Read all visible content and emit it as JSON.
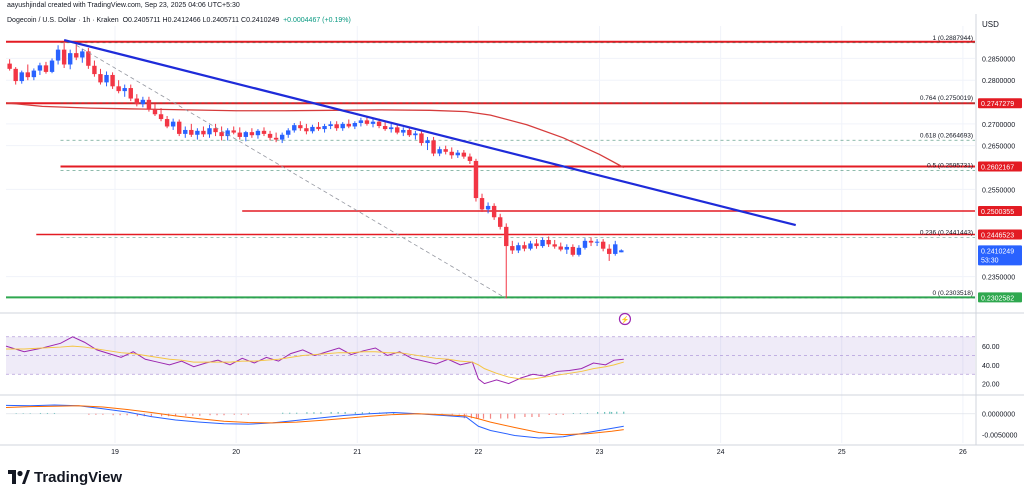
{
  "header": {
    "author_line": "aayushjindal created with TradingView.com, Sep 23, 2025 04:06 UTC+5:30",
    "symbol_line": "Dogecoin / U.S. Dollar · 1h · Kraken",
    "ohlc": "O0.2405711  H0.2412466  L0.2405711  C0.2410249",
    "change": "+0.0004467 (+0.19%)"
  },
  "brand": {
    "name": "TradingView"
  },
  "colors": {
    "up": "#2962ff",
    "down": "#f23645",
    "trend": "#1e2bd9",
    "level": "#e31b23",
    "support": "#2fa84f",
    "rsi": "#9c27b0",
    "rsi_ma": "#f5c542",
    "macd": "#2962ff",
    "signal": "#ff6d00",
    "fib": "#2a7f62",
    "price_badge": "#2962ff"
  },
  "chart_data": {
    "type": "candlestick",
    "title": "Dogecoin / U.S. Dollar · 1h · Kraken",
    "currency": "USD",
    "y_axis_ticks": [
      "0.2850000",
      "0.2800000",
      "0.2700000",
      "0.2650000",
      "0.2550000",
      "0.2350000"
    ],
    "x_axis_ticks": [
      "19",
      "20",
      "21",
      "22",
      "23",
      "24",
      "25",
      "26"
    ],
    "ylim": [
      0.2285,
      0.2915
    ],
    "x_range": [
      18.1,
      26.1
    ],
    "candles": [
      [
        18.13,
        0.2838,
        0.2848,
        0.2822,
        0.2826
      ],
      [
        18.18,
        0.2826,
        0.283,
        0.279,
        0.2798
      ],
      [
        18.23,
        0.2798,
        0.2822,
        0.2792,
        0.2818
      ],
      [
        18.28,
        0.2818,
        0.2836,
        0.28,
        0.2807
      ],
      [
        18.33,
        0.2807,
        0.2827,
        0.28,
        0.2822
      ],
      [
        18.38,
        0.2822,
        0.284,
        0.2812,
        0.2834
      ],
      [
        18.43,
        0.2834,
        0.2842,
        0.2815,
        0.2819
      ],
      [
        18.48,
        0.2819,
        0.285,
        0.2816,
        0.2845
      ],
      [
        18.53,
        0.2845,
        0.288,
        0.2836,
        0.287
      ],
      [
        18.58,
        0.287,
        0.2885,
        0.2828,
        0.2836
      ],
      [
        18.63,
        0.2836,
        0.287,
        0.2825,
        0.2862
      ],
      [
        18.68,
        0.2862,
        0.2888,
        0.2846,
        0.2852
      ],
      [
        18.73,
        0.2852,
        0.2872,
        0.284,
        0.2866
      ],
      [
        18.78,
        0.2866,
        0.2874,
        0.2826,
        0.2833
      ],
      [
        18.83,
        0.2833,
        0.2845,
        0.2808,
        0.2814
      ],
      [
        18.88,
        0.2814,
        0.2826,
        0.279,
        0.2795
      ],
      [
        18.93,
        0.2795,
        0.282,
        0.2786,
        0.2812
      ],
      [
        18.98,
        0.2812,
        0.2818,
        0.278,
        0.2786
      ],
      [
        19.03,
        0.2786,
        0.28,
        0.277,
        0.2775
      ],
      [
        19.08,
        0.2775,
        0.279,
        0.2762,
        0.2782
      ],
      [
        19.13,
        0.2782,
        0.279,
        0.2752,
        0.2758
      ],
      [
        19.18,
        0.2758,
        0.2768,
        0.274,
        0.2745
      ],
      [
        19.23,
        0.2745,
        0.2762,
        0.2738,
        0.2755
      ],
      [
        19.28,
        0.2755,
        0.2762,
        0.2728,
        0.2733
      ],
      [
        19.33,
        0.2733,
        0.2746,
        0.2718,
        0.2722
      ],
      [
        19.38,
        0.2722,
        0.2736,
        0.2706,
        0.2711
      ],
      [
        19.43,
        0.2711,
        0.2718,
        0.269,
        0.2694
      ],
      [
        19.48,
        0.2694,
        0.2712,
        0.2686,
        0.2705
      ],
      [
        19.53,
        0.2705,
        0.271,
        0.2672,
        0.2677
      ],
      [
        19.58,
        0.2677,
        0.2694,
        0.2668,
        0.2686
      ],
      [
        19.63,
        0.2686,
        0.27,
        0.267,
        0.2675
      ],
      [
        19.68,
        0.2675,
        0.269,
        0.2664,
        0.2684
      ],
      [
        19.73,
        0.2684,
        0.2694,
        0.267,
        0.2676
      ],
      [
        19.78,
        0.2676,
        0.2698,
        0.2668,
        0.269
      ],
      [
        19.83,
        0.269,
        0.27,
        0.2672,
        0.2681
      ],
      [
        19.88,
        0.2681,
        0.2694,
        0.2662,
        0.2672
      ],
      [
        19.93,
        0.2672,
        0.269,
        0.2662,
        0.2685
      ],
      [
        19.98,
        0.2685,
        0.2694,
        0.2676,
        0.268
      ],
      [
        20.03,
        0.268,
        0.2692,
        0.2664,
        0.267
      ],
      [
        20.08,
        0.267,
        0.2684,
        0.266,
        0.2681
      ],
      [
        20.13,
        0.2681,
        0.269,
        0.2668,
        0.2674
      ],
      [
        20.18,
        0.2674,
        0.2688,
        0.2666,
        0.2684
      ],
      [
        20.23,
        0.2684,
        0.2692,
        0.2672,
        0.2677
      ],
      [
        20.28,
        0.2677,
        0.2684,
        0.2662,
        0.2668
      ],
      [
        20.33,
        0.2668,
        0.268,
        0.2658,
        0.2664
      ],
      [
        20.38,
        0.2664,
        0.268,
        0.2656,
        0.2675
      ],
      [
        20.43,
        0.2675,
        0.269,
        0.2668,
        0.2685
      ],
      [
        20.48,
        0.2685,
        0.2702,
        0.268,
        0.2697
      ],
      [
        20.53,
        0.2697,
        0.2706,
        0.2684,
        0.269
      ],
      [
        20.58,
        0.269,
        0.27,
        0.2676,
        0.2683
      ],
      [
        20.63,
        0.2683,
        0.2698,
        0.2678,
        0.2693
      ],
      [
        20.68,
        0.2693,
        0.2704,
        0.2684,
        0.2688
      ],
      [
        20.73,
        0.2688,
        0.27,
        0.268,
        0.2695
      ],
      [
        20.78,
        0.2695,
        0.2706,
        0.2688,
        0.2699
      ],
      [
        20.83,
        0.2699,
        0.2706,
        0.2684,
        0.269
      ],
      [
        20.88,
        0.269,
        0.2704,
        0.2684,
        0.27
      ],
      [
        20.93,
        0.27,
        0.271,
        0.269,
        0.2694
      ],
      [
        20.98,
        0.2694,
        0.2706,
        0.2688,
        0.2702
      ],
      [
        21.03,
        0.2702,
        0.2714,
        0.2694,
        0.2708
      ],
      [
        21.08,
        0.2708,
        0.2716,
        0.2696,
        0.27
      ],
      [
        21.13,
        0.27,
        0.2712,
        0.2692,
        0.2705
      ],
      [
        21.18,
        0.2705,
        0.2712,
        0.269,
        0.2695
      ],
      [
        21.23,
        0.2695,
        0.2704,
        0.2684,
        0.2688
      ],
      [
        21.28,
        0.2688,
        0.27,
        0.268,
        0.2692
      ],
      [
        21.33,
        0.2692,
        0.27,
        0.2676,
        0.268
      ],
      [
        21.38,
        0.268,
        0.2692,
        0.2672,
        0.2686
      ],
      [
        21.43,
        0.2686,
        0.2694,
        0.267,
        0.2674
      ],
      [
        21.48,
        0.2674,
        0.2684,
        0.2664,
        0.2678
      ],
      [
        21.53,
        0.2678,
        0.2684,
        0.265,
        0.2656
      ],
      [
        21.58,
        0.2656,
        0.267,
        0.264,
        0.2662
      ],
      [
        21.63,
        0.2662,
        0.267,
        0.2626,
        0.2632
      ],
      [
        21.68,
        0.2632,
        0.2648,
        0.2626,
        0.2642
      ],
      [
        21.73,
        0.2642,
        0.265,
        0.263,
        0.2636
      ],
      [
        21.78,
        0.2636,
        0.2646,
        0.262,
        0.2628
      ],
      [
        21.83,
        0.2628,
        0.264,
        0.2622,
        0.2634
      ],
      [
        21.88,
        0.2634,
        0.264,
        0.262,
        0.2625
      ],
      [
        21.93,
        0.2625,
        0.2632,
        0.2608,
        0.2615
      ],
      [
        21.98,
        0.2615,
        0.262,
        0.2522,
        0.253
      ],
      [
        22.03,
        0.253,
        0.254,
        0.2498,
        0.2504
      ],
      [
        22.08,
        0.2504,
        0.252,
        0.2495,
        0.2512
      ],
      [
        22.13,
        0.2512,
        0.2518,
        0.248,
        0.2486
      ],
      [
        22.18,
        0.2486,
        0.2494,
        0.2458,
        0.2464
      ],
      [
        22.23,
        0.2464,
        0.2472,
        0.23,
        0.242
      ],
      [
        22.28,
        0.242,
        0.2432,
        0.2402,
        0.241
      ],
      [
        22.33,
        0.241,
        0.2428,
        0.2404,
        0.2422
      ],
      [
        22.38,
        0.2422,
        0.243,
        0.2408,
        0.2414
      ],
      [
        22.43,
        0.2414,
        0.2432,
        0.241,
        0.2426
      ],
      [
        22.48,
        0.2426,
        0.2436,
        0.2414,
        0.242
      ],
      [
        22.53,
        0.242,
        0.244,
        0.2416,
        0.2434
      ],
      [
        22.58,
        0.2434,
        0.2442,
        0.2418,
        0.2424
      ],
      [
        22.63,
        0.2424,
        0.2434,
        0.2414,
        0.2419
      ],
      [
        22.68,
        0.2419,
        0.2428,
        0.2408,
        0.2412
      ],
      [
        22.73,
        0.2412,
        0.2424,
        0.2402,
        0.2418
      ],
      [
        22.78,
        0.2418,
        0.2424,
        0.2396,
        0.24
      ],
      [
        22.83,
        0.24,
        0.2422,
        0.2396,
        0.2416
      ],
      [
        22.88,
        0.2416,
        0.2438,
        0.2412,
        0.2432
      ],
      [
        22.93,
        0.2432,
        0.244,
        0.242,
        0.2428
      ],
      [
        22.98,
        0.2428,
        0.2436,
        0.242,
        0.243
      ],
      [
        23.03,
        0.243,
        0.2436,
        0.2408,
        0.2414
      ],
      [
        23.08,
        0.2414,
        0.2424,
        0.2386,
        0.2402
      ],
      [
        23.13,
        0.2402,
        0.2432,
        0.2398,
        0.2424
      ],
      [
        23.18,
        0.2405711,
        0.2412466,
        0.2405711,
        0.2410249
      ]
    ],
    "ma_line": {
      "x": [
        18.1,
        18.4,
        18.8,
        19.2,
        19.6,
        20.0,
        20.4,
        20.8,
        21.2,
        21.6,
        21.9,
        22.1,
        22.4,
        22.7,
        23.0,
        23.2
      ],
      "y": [
        0.2748,
        0.274,
        0.2736,
        0.2734,
        0.2732,
        0.273,
        0.273,
        0.2731,
        0.2732,
        0.2731,
        0.2728,
        0.272,
        0.2698,
        0.2668,
        0.263,
        0.26
      ]
    },
    "trend_line": {
      "x": [
        18.58,
        24.62
      ],
      "y": [
        0.2892,
        0.2468
      ]
    },
    "projection_line": {
      "x": [
        18.68,
        22.23
      ],
      "y": [
        0.288,
        0.23
      ],
      "style": "dashed"
    },
    "horizontal_levels": [
      {
        "y": 0.2887944,
        "x_from": 18.1,
        "color": "#e31b23",
        "width": 2
      },
      {
        "y": 0.2747279,
        "x_from": 18.1,
        "color": "#e31b23",
        "width": 2
      },
      {
        "y": 0.2602167,
        "x_from": 18.55,
        "color": "#e31b23",
        "width": 2
      },
      {
        "y": 0.2500355,
        "x_from": 20.05,
        "color": "#e31b23",
        "width": 1.4
      },
      {
        "y": 0.2446523,
        "x_from": 18.35,
        "color": "#e31b23",
        "width": 1.4
      },
      {
        "y": 0.2302582,
        "x_from": 18.1,
        "color": "#2fa84f",
        "width": 2
      }
    ],
    "fib_levels": [
      {
        "ratio": "1",
        "value": "0.2887944",
        "y": 0.2887944
      },
      {
        "ratio": "0.764",
        "value": "0.2750019",
        "y": 0.2750019
      },
      {
        "ratio": "0.618",
        "value": "0.2664693",
        "y": 0.2664693
      },
      {
        "ratio": "0.5",
        "value": "0.2595731",
        "y": 0.2595731
      },
      {
        "ratio": "0.236",
        "value": "0.2441443",
        "y": 0.2441443
      },
      {
        "ratio": "0",
        "value": "0.2303518",
        "y": 0.2303518
      }
    ],
    "price_badges": [
      {
        "value": "0.2747279",
        "y": 0.2747279,
        "color": "#e31b23"
      },
      {
        "value": "0.2602167",
        "y": 0.2602167,
        "color": "#e31b23"
      },
      {
        "value": "0.2500355",
        "y": 0.2500355,
        "color": "#e31b23"
      },
      {
        "value": "0.2446523",
        "y": 0.2446523,
        "color": "#e31b23"
      },
      {
        "value": "0.2410249",
        "sub": "53:30",
        "y": 0.2410249,
        "color": "#2962ff"
      },
      {
        "value": "0.2302582",
        "y": 0.2302582,
        "color": "#2fa84f"
      }
    ],
    "rsi": {
      "ticks": [
        "60.00",
        "40.00",
        "20.00"
      ],
      "ylim": [
        10,
        90
      ],
      "band": [
        30,
        70
      ],
      "x": [
        18.1,
        18.25,
        18.4,
        18.55,
        18.65,
        18.75,
        18.85,
        18.95,
        19.05,
        19.15,
        19.25,
        19.35,
        19.45,
        19.55,
        19.65,
        19.75,
        19.85,
        19.95,
        20.05,
        20.15,
        20.25,
        20.35,
        20.45,
        20.55,
        20.65,
        20.75,
        20.85,
        20.95,
        21.05,
        21.15,
        21.25,
        21.35,
        21.45,
        21.55,
        21.65,
        21.75,
        21.85,
        21.95,
        22.0,
        22.05,
        22.15,
        22.25,
        22.35,
        22.45,
        22.55,
        22.65,
        22.75,
        22.85,
        22.95,
        23.05,
        23.12,
        23.2
      ],
      "y": [
        60,
        54,
        58,
        63,
        70,
        64,
        56,
        52,
        48,
        54,
        46,
        43,
        40,
        44,
        38,
        42,
        45,
        40,
        47,
        42,
        48,
        44,
        52,
        56,
        50,
        54,
        58,
        51,
        55,
        58,
        50,
        54,
        47,
        44,
        41,
        46,
        40,
        43,
        25,
        20,
        24,
        20,
        26,
        30,
        28,
        33,
        34,
        36,
        42,
        40,
        45,
        46
      ],
      "ma_y": [
        57,
        57,
        58,
        59,
        60,
        59,
        57,
        55,
        53,
        52,
        50,
        48,
        46,
        45,
        43,
        43,
        43,
        43,
        44,
        44,
        45,
        46,
        48,
        50,
        51,
        52,
        53,
        53,
        54,
        54,
        53,
        53,
        51,
        49,
        47,
        46,
        44,
        43,
        40,
        36,
        31,
        27,
        25,
        25,
        27,
        29,
        31,
        33,
        36,
        38,
        40,
        43
      ]
    },
    "macd": {
      "ticks": [
        "0.0000000",
        "-0.0050000"
      ],
      "ylim": [
        -0.007,
        0.004
      ],
      "x": [
        18.1,
        18.3,
        18.5,
        18.7,
        18.9,
        19.1,
        19.3,
        19.5,
        19.7,
        19.9,
        20.1,
        20.3,
        20.5,
        20.7,
        20.9,
        21.1,
        21.3,
        21.5,
        21.7,
        21.9,
        22.0,
        22.1,
        22.3,
        22.5,
        22.7,
        22.9,
        23.1,
        23.2
      ],
      "macd_y": [
        0.002,
        0.0019,
        0.0021,
        0.0019,
        0.0012,
        0.0004,
        -0.0007,
        -0.0015,
        -0.002,
        -0.0024,
        -0.0025,
        -0.0022,
        -0.0016,
        -0.001,
        -0.0004,
        0.0,
        0.0003,
        0.0,
        -0.0004,
        -0.0008,
        -0.003,
        -0.004,
        -0.0052,
        -0.0058,
        -0.0055,
        -0.0045,
        -0.0035,
        -0.003
      ],
      "signal_y": [
        0.0015,
        0.0017,
        0.0018,
        0.0019,
        0.0016,
        0.001,
        0.0003,
        -0.0005,
        -0.0012,
        -0.0018,
        -0.0021,
        -0.0022,
        -0.002,
        -0.0016,
        -0.0011,
        -0.0006,
        -0.0002,
        0.0,
        -0.0002,
        -0.0005,
        -0.0012,
        -0.002,
        -0.0033,
        -0.0045,
        -0.005,
        -0.0048,
        -0.0042,
        -0.0038
      ]
    }
  }
}
